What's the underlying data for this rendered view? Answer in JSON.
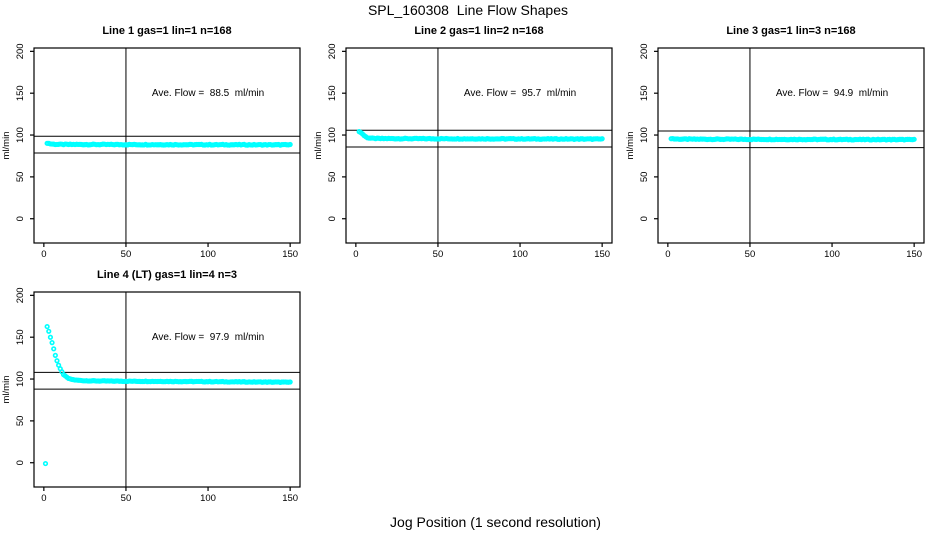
{
  "figure": {
    "title": "SPL_160308  Line Flow Shapes",
    "xlabel": "Jog Position (1 second resolution)",
    "background": "#FFFFFF"
  },
  "colors": {
    "marker": "#00FFFF",
    "axis": "#000000",
    "reference_line": "#000000",
    "text": "#000000"
  },
  "chart_data": [
    {
      "type": "scatter",
      "title": "Line 1 gas=1 lin=1 n=168",
      "line": 1,
      "gas": 1,
      "lin": 1,
      "n": 168,
      "annotation": "Ave. Flow =  88.5  ml/min",
      "ave_flow_ml_min": 88.5,
      "ylabel": "ml/min",
      "xlim": [
        -6,
        156
      ],
      "ylim": [
        -29,
        204
      ],
      "xticks": [
        0,
        50,
        100,
        150
      ],
      "yticks": [
        0,
        50,
        100,
        150,
        200
      ],
      "hlines": [
        98.5,
        78.5
      ],
      "vline": 50,
      "grid": false,
      "marker": "open-circle",
      "marker_color": "#00FFFF",
      "annotation_pos": [
        100,
        150
      ],
      "series": {
        "name": "flow",
        "x_start": 2,
        "x_end": 150,
        "x_step": 1,
        "keypoints": [
          [
            2,
            90.5
          ],
          [
            3,
            90.0
          ],
          [
            4,
            89.5
          ],
          [
            6,
            89.0
          ],
          [
            10,
            88.8
          ],
          [
            50,
            88.6
          ],
          [
            150,
            88.3
          ]
        ],
        "jitter": 0.9,
        "extra_points": []
      }
    },
    {
      "type": "scatter",
      "title": "Line 2 gas=1 lin=2 n=168",
      "line": 2,
      "gas": 1,
      "lin": 2,
      "n": 168,
      "annotation": "Ave. Flow =  95.7  ml/min",
      "ave_flow_ml_min": 95.7,
      "ylabel": "ml/min",
      "xlim": [
        -6,
        156
      ],
      "ylim": [
        -29,
        204
      ],
      "xticks": [
        0,
        50,
        100,
        150
      ],
      "yticks": [
        0,
        50,
        100,
        150,
        200
      ],
      "hlines": [
        105.7,
        85.7
      ],
      "vline": 50,
      "grid": false,
      "marker": "open-circle",
      "marker_color": "#00FFFF",
      "annotation_pos": [
        100,
        150
      ],
      "series": {
        "name": "flow",
        "x_start": 2,
        "x_end": 150,
        "x_step": 1,
        "keypoints": [
          [
            2,
            104.5
          ],
          [
            3,
            103.0
          ],
          [
            4,
            101.5
          ],
          [
            5,
            99.5
          ],
          [
            6,
            98.0
          ],
          [
            7,
            97.0
          ],
          [
            8,
            96.5
          ],
          [
            10,
            96.0
          ],
          [
            15,
            95.8
          ],
          [
            50,
            95.6
          ],
          [
            150,
            95.2
          ]
        ],
        "jitter": 0.9,
        "extra_points": []
      }
    },
    {
      "type": "scatter",
      "title": "Line 3 gas=1 lin=3 n=168",
      "line": 3,
      "gas": 1,
      "lin": 3,
      "n": 168,
      "annotation": "Ave. Flow =  94.9  ml/min",
      "ave_flow_ml_min": 94.9,
      "ylabel": "ml/min",
      "xlim": [
        -6,
        156
      ],
      "ylim": [
        -29,
        204
      ],
      "xticks": [
        0,
        50,
        100,
        150
      ],
      "yticks": [
        0,
        50,
        100,
        150,
        200
      ],
      "hlines": [
        104.9,
        84.9
      ],
      "vline": 50,
      "grid": false,
      "marker": "open-circle",
      "marker_color": "#00FFFF",
      "annotation_pos": [
        100,
        150
      ],
      "series": {
        "name": "flow",
        "x_start": 2,
        "x_end": 150,
        "x_step": 1,
        "keypoints": [
          [
            2,
            96.0
          ],
          [
            4,
            95.4
          ],
          [
            8,
            95.1
          ],
          [
            50,
            94.9
          ],
          [
            150,
            94.5
          ]
        ],
        "jitter": 0.9,
        "extra_points": []
      }
    },
    {
      "type": "scatter",
      "title": "Line 4 (LT) gas=1 lin=4 n=3",
      "line": 4,
      "gas": 1,
      "lin": 4,
      "n": 3,
      "annotation": "Ave. Flow =  97.9  ml/min",
      "ave_flow_ml_min": 97.9,
      "ylabel": "ml/min",
      "xlim": [
        -6,
        156
      ],
      "ylim": [
        -29,
        204
      ],
      "xticks": [
        0,
        50,
        100,
        150
      ],
      "yticks": [
        0,
        50,
        100,
        150,
        200
      ],
      "hlines": [
        107.9,
        87.9
      ],
      "vline": 50,
      "grid": false,
      "marker": "open-circle",
      "marker_color": "#00FFFF",
      "annotation_pos": [
        100,
        150
      ],
      "series": {
        "name": "flow",
        "x_start": 2,
        "x_end": 150,
        "x_step": 1,
        "keypoints": [
          [
            2,
            163
          ],
          [
            3,
            157
          ],
          [
            4,
            150
          ],
          [
            5,
            143.5
          ],
          [
            6,
            136
          ],
          [
            7,
            128.5
          ],
          [
            8,
            122
          ],
          [
            9,
            116.5
          ],
          [
            10,
            112
          ],
          [
            11,
            108.5
          ],
          [
            12,
            105.5
          ],
          [
            13,
            103.5
          ],
          [
            14,
            102
          ],
          [
            15,
            100.8
          ],
          [
            16,
            100
          ],
          [
            18,
            99.2
          ],
          [
            20,
            98.6
          ],
          [
            25,
            98.0
          ],
          [
            30,
            97.8
          ],
          [
            50,
            97.4
          ],
          [
            100,
            96.9
          ],
          [
            150,
            96.2
          ]
        ],
        "jitter": 0.7,
        "extra_points": [
          [
            1,
            -1
          ]
        ]
      }
    }
  ]
}
